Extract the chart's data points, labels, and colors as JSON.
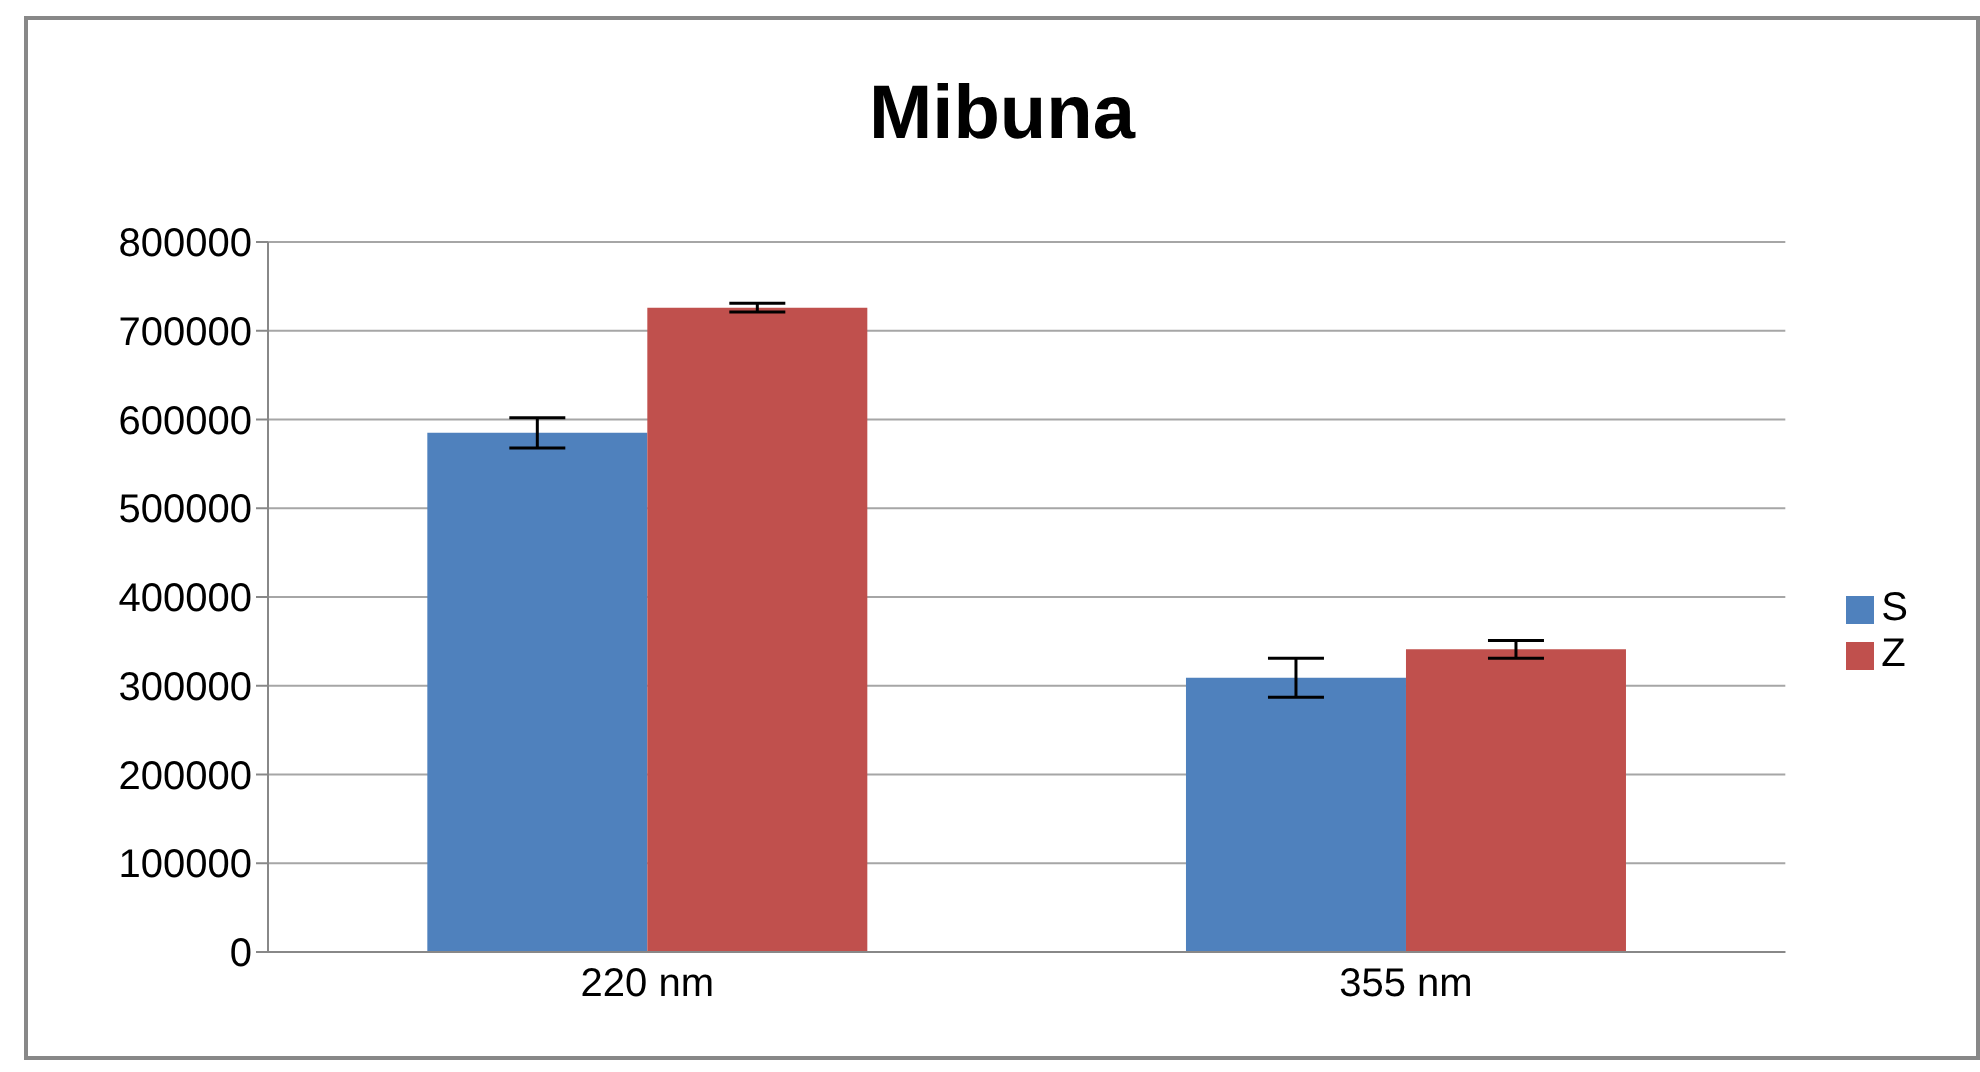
{
  "chart_data": {
    "type": "bar",
    "title": "Mibuna",
    "categories": [
      "220 nm",
      "355 nm"
    ],
    "series": [
      {
        "name": "S",
        "color": "#4f81bd",
        "values": [
          585000,
          309000
        ],
        "errors": [
          17000,
          22000
        ]
      },
      {
        "name": "Z",
        "color": "#c0504d",
        "values": [
          726000,
          341000
        ],
        "errors": [
          5000,
          10000
        ]
      }
    ],
    "ylim": [
      0,
      800000
    ],
    "yticks": [
      0,
      100000,
      200000,
      300000,
      400000,
      500000,
      600000,
      700000,
      800000
    ],
    "grid": "y",
    "legend": "right"
  }
}
